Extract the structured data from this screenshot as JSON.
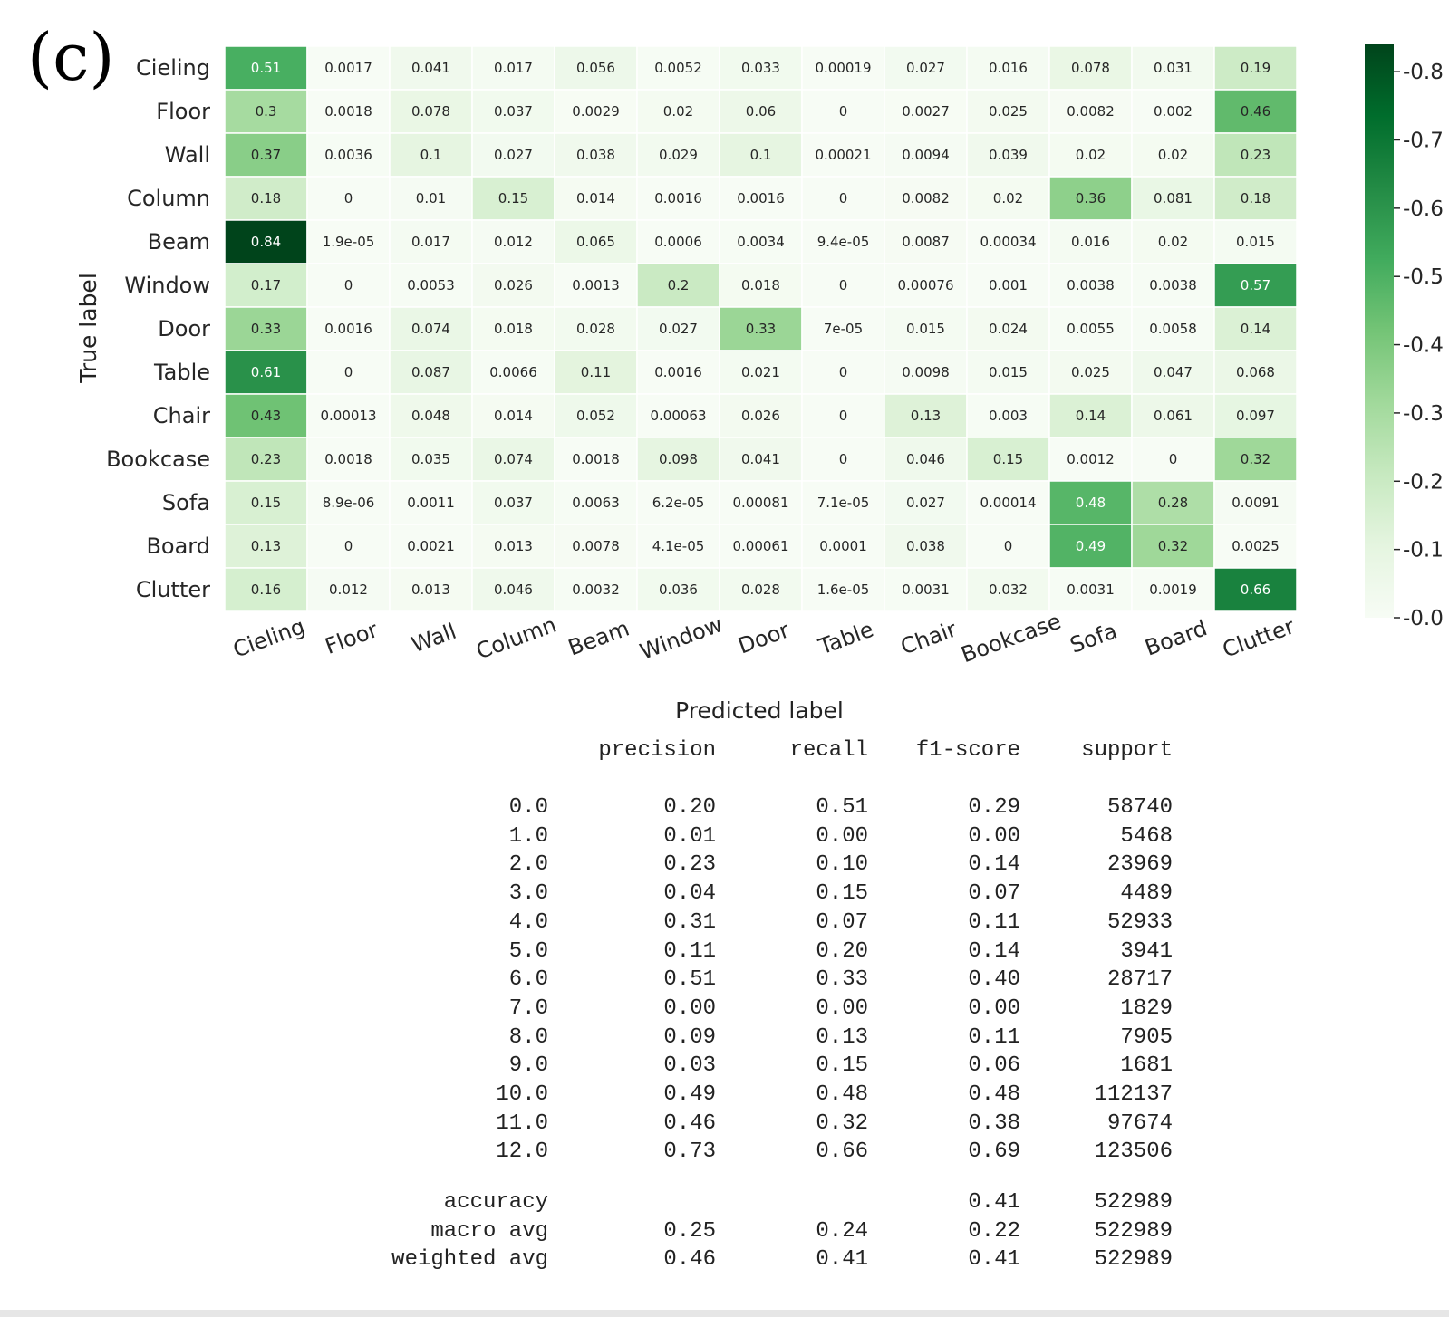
{
  "panel_label": "(c)",
  "chart_data": {
    "type": "heatmap",
    "title": "",
    "xlabel": "Predicted label",
    "ylabel": "True label",
    "row_labels": [
      "Cieling",
      "Floor",
      "Wall",
      "Column",
      "Beam",
      "Window",
      "Door",
      "Table",
      "Chair",
      "Bookcase",
      "Sofa",
      "Board",
      "Clutter"
    ],
    "col_labels": [
      "Cieling",
      "Floor",
      "Wall",
      "Column",
      "Beam",
      "Window",
      "Door",
      "Table",
      "Chair",
      "Bookcase",
      "Sofa",
      "Board",
      "Clutter"
    ],
    "cells": [
      [
        "0.51",
        "0.0017",
        "0.041",
        "0.017",
        "0.056",
        "0.0052",
        "0.033",
        "0.00019",
        "0.027",
        "0.016",
        "0.078",
        "0.031",
        "0.19"
      ],
      [
        "0.3",
        "0.0018",
        "0.078",
        "0.037",
        "0.0029",
        "0.02",
        "0.06",
        "0",
        "0.0027",
        "0.025",
        "0.0082",
        "0.002",
        "0.46"
      ],
      [
        "0.37",
        "0.0036",
        "0.1",
        "0.027",
        "0.038",
        "0.029",
        "0.1",
        "0.00021",
        "0.0094",
        "0.039",
        "0.02",
        "0.02",
        "0.23"
      ],
      [
        "0.18",
        "0",
        "0.01",
        "0.15",
        "0.014",
        "0.0016",
        "0.0016",
        "0",
        "0.0082",
        "0.02",
        "0.36",
        "0.081",
        "0.18"
      ],
      [
        "0.84",
        "1.9e-05",
        "0.017",
        "0.012",
        "0.065",
        "0.0006",
        "0.0034",
        "9.4e-05",
        "0.0087",
        "0.00034",
        "0.016",
        "0.02",
        "0.015"
      ],
      [
        "0.17",
        "0",
        "0.0053",
        "0.026",
        "0.0013",
        "0.2",
        "0.018",
        "0",
        "0.00076",
        "0.001",
        "0.0038",
        "0.0038",
        "0.57"
      ],
      [
        "0.33",
        "0.0016",
        "0.074",
        "0.018",
        "0.028",
        "0.027",
        "0.33",
        "7e-05",
        "0.015",
        "0.024",
        "0.0055",
        "0.0058",
        "0.14"
      ],
      [
        "0.61",
        "0",
        "0.087",
        "0.0066",
        "0.11",
        "0.0016",
        "0.021",
        "0",
        "0.0098",
        "0.015",
        "0.025",
        "0.047",
        "0.068"
      ],
      [
        "0.43",
        "0.00013",
        "0.048",
        "0.014",
        "0.052",
        "0.00063",
        "0.026",
        "0",
        "0.13",
        "0.003",
        "0.14",
        "0.061",
        "0.097"
      ],
      [
        "0.23",
        "0.0018",
        "0.035",
        "0.074",
        "0.0018",
        "0.098",
        "0.041",
        "0",
        "0.046",
        "0.15",
        "0.0012",
        "0",
        "0.32"
      ],
      [
        "0.15",
        "8.9e-06",
        "0.0011",
        "0.037",
        "0.0063",
        "6.2e-05",
        "0.00081",
        "7.1e-05",
        "0.027",
        "0.00014",
        "0.48",
        "0.28",
        "0.0091"
      ],
      [
        "0.13",
        "0",
        "0.0021",
        "0.013",
        "0.0078",
        "4.1e-05",
        "0.00061",
        "0.0001",
        "0.038",
        "0",
        "0.49",
        "0.32",
        "0.0025"
      ],
      [
        "0.16",
        "0.012",
        "0.013",
        "0.046",
        "0.0032",
        "0.036",
        "0.028",
        "1.6e-05",
        "0.0031",
        "0.032",
        "0.0031",
        "0.0019",
        "0.66"
      ]
    ],
    "colorbar": {
      "min": 0.0,
      "max": 0.84,
      "ticks": [
        "0.0",
        "0.1",
        "0.2",
        "0.3",
        "0.4",
        "0.5",
        "0.6",
        "0.7",
        "0.8"
      ],
      "colormap": "Greens",
      "colors": [
        "#f7fcf5",
        "#e5f5e0",
        "#c7e9c0",
        "#a1d99b",
        "#74c476",
        "#41ab5d",
        "#238b45",
        "#006d2c",
        "#00441b"
      ]
    },
    "grid": false,
    "legend": "colorbar-right"
  },
  "report": {
    "headers": [
      "precision",
      "recall",
      "f1-score",
      "support"
    ],
    "rows": [
      {
        "label": "0.0",
        "precision": "0.20",
        "recall": "0.51",
        "f1": "0.29",
        "support": "58740"
      },
      {
        "label": "1.0",
        "precision": "0.01",
        "recall": "0.00",
        "f1": "0.00",
        "support": "5468"
      },
      {
        "label": "2.0",
        "precision": "0.23",
        "recall": "0.10",
        "f1": "0.14",
        "support": "23969"
      },
      {
        "label": "3.0",
        "precision": "0.04",
        "recall": "0.15",
        "f1": "0.07",
        "support": "4489"
      },
      {
        "label": "4.0",
        "precision": "0.31",
        "recall": "0.07",
        "f1": "0.11",
        "support": "52933"
      },
      {
        "label": "5.0",
        "precision": "0.11",
        "recall": "0.20",
        "f1": "0.14",
        "support": "3941"
      },
      {
        "label": "6.0",
        "precision": "0.51",
        "recall": "0.33",
        "f1": "0.40",
        "support": "28717"
      },
      {
        "label": "7.0",
        "precision": "0.00",
        "recall": "0.00",
        "f1": "0.00",
        "support": "1829"
      },
      {
        "label": "8.0",
        "precision": "0.09",
        "recall": "0.13",
        "f1": "0.11",
        "support": "7905"
      },
      {
        "label": "9.0",
        "precision": "0.03",
        "recall": "0.15",
        "f1": "0.06",
        "support": "1681"
      },
      {
        "label": "10.0",
        "precision": "0.49",
        "recall": "0.48",
        "f1": "0.48",
        "support": "112137"
      },
      {
        "label": "11.0",
        "precision": "0.46",
        "recall": "0.32",
        "f1": "0.38",
        "support": "97674"
      },
      {
        "label": "12.0",
        "precision": "0.73",
        "recall": "0.66",
        "f1": "0.69",
        "support": "123506"
      }
    ],
    "summary": [
      {
        "label": "accuracy",
        "precision": "",
        "recall": "",
        "f1": "0.41",
        "support": "522989"
      },
      {
        "label": "macro avg",
        "precision": "0.25",
        "recall": "0.24",
        "f1": "0.22",
        "support": "522989"
      },
      {
        "label": "weighted avg",
        "precision": "0.46",
        "recall": "0.41",
        "f1": "0.41",
        "support": "522989"
      }
    ]
  }
}
